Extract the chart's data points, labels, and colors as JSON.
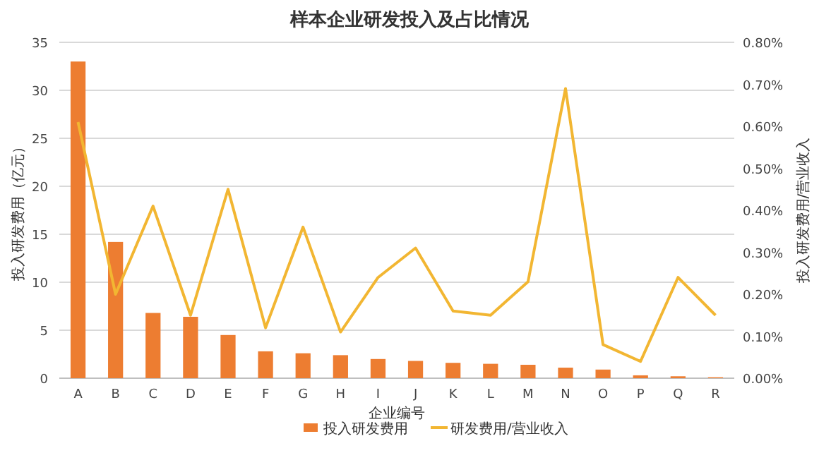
{
  "chart_data": {
    "type": "bar",
    "title": "样本企业研发投入及占比情况",
    "xlabel": "企业编号",
    "ylabel": "投入研发费用（亿元）",
    "y2label": "投入研发费用/营业收入",
    "categories": [
      "A",
      "B",
      "C",
      "D",
      "E",
      "F",
      "G",
      "H",
      "I",
      "J",
      "K",
      "L",
      "M",
      "N",
      "O",
      "P",
      "Q",
      "R"
    ],
    "series": [
      {
        "name": "投入研发费用",
        "color": "#ed7d31",
        "values": [
          33,
          14.2,
          6.8,
          6.4,
          4.5,
          2.8,
          2.6,
          2.4,
          2.0,
          1.8,
          1.6,
          1.5,
          1.4,
          1.1,
          0.9,
          0.3,
          0.2,
          0.1
        ]
      },
      {
        "name": "研发费用/营业收入",
        "type": "line",
        "axis": "y2",
        "color": "#f2b632",
        "values": [
          0.61,
          0.2,
          0.41,
          0.15,
          0.45,
          0.12,
          0.36,
          0.11,
          0.24,
          0.31,
          0.16,
          0.15,
          0.23,
          0.69,
          0.08,
          0.04,
          0.24,
          0.15
        ]
      }
    ],
    "ylim": [
      0,
      35
    ],
    "yticks": [
      0,
      5,
      10,
      15,
      20,
      25,
      30,
      35
    ],
    "y2lim": [
      0,
      0.8
    ],
    "y2ticks": [
      {
        "value": 0,
        "label": "0.00%"
      },
      {
        "value": 0.1,
        "label": "0.10%"
      },
      {
        "value": 0.2,
        "label": "0.20%"
      },
      {
        "value": 0.3,
        "label": "0.30%"
      },
      {
        "value": 0.4,
        "label": "0.40%"
      },
      {
        "value": 0.5,
        "label": "0.50%"
      },
      {
        "value": 0.6,
        "label": "0.60%"
      },
      {
        "value": 0.7,
        "label": "0.70%"
      },
      {
        "value": 0.8,
        "label": "0.80%"
      }
    ],
    "grid": "y",
    "legend": "bottom"
  }
}
